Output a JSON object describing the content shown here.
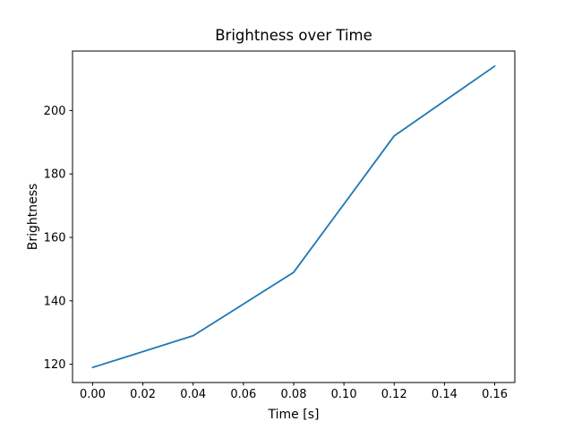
{
  "chart_data": {
    "type": "line",
    "title": "Brightness over Time",
    "xlabel": "Time [s]",
    "ylabel": "Brightness",
    "x": [
      0.0,
      0.04,
      0.08,
      0.12,
      0.16
    ],
    "y": [
      119,
      129,
      149,
      192,
      214
    ],
    "series": [
      {
        "name": "Brightness",
        "x": [
          0.0,
          0.04,
          0.08,
          0.12,
          0.16
        ],
        "values": [
          119,
          129,
          149,
          192,
          214
        ]
      }
    ],
    "xticks": {
      "values": [
        0.0,
        0.02,
        0.04,
        0.06,
        0.08,
        0.1,
        0.12,
        0.14,
        0.16
      ],
      "labels": [
        "0.00",
        "0.02",
        "0.04",
        "0.06",
        "0.08",
        "0.10",
        "0.12",
        "0.14",
        "0.16"
      ]
    },
    "yticks": {
      "values": [
        120,
        140,
        160,
        180,
        200
      ],
      "labels": [
        "120",
        "140",
        "160",
        "180",
        "200"
      ]
    },
    "xlim": [
      -0.008,
      0.168
    ],
    "ylim": [
      114.25,
      218.75
    ],
    "grid": false,
    "legend_position": "none",
    "line_color": "#1f77b4",
    "line_width": 1.8,
    "spine_color": "#000000",
    "background_color": "#ffffff"
  }
}
